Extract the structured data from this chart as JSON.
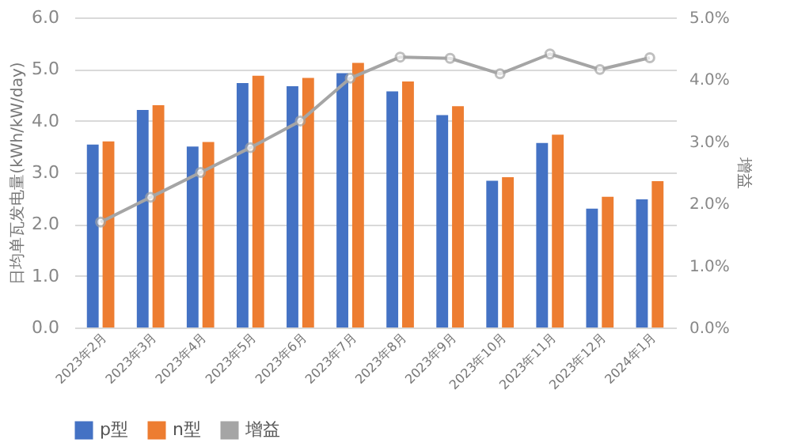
{
  "chart_data": {
    "type": "bar",
    "categories": [
      "2023年2月",
      "2023年3月",
      "2023年4月",
      "2023年5月",
      "2023年6月",
      "2023年7月",
      "2023年8月",
      "2023年9月",
      "2023年10月",
      "2023年11月",
      "2023年12月",
      "2024年1月"
    ],
    "ylabel": "日均单瓦发电量(kWh/kW/day)",
    "y2label": "增益",
    "series": [
      {
        "name": "p型",
        "color": "#4472c4",
        "values": [
          3.54,
          4.21,
          3.5,
          4.73,
          4.67,
          4.92,
          4.57,
          4.11,
          2.84,
          3.57,
          2.3,
          2.48
        ]
      },
      {
        "name": "n型",
        "color": "#ed7d31",
        "values": [
          3.6,
          4.3,
          3.59,
          4.87,
          4.83,
          5.12,
          4.76,
          4.28,
          2.91,
          3.73,
          2.53,
          2.83
        ]
      },
      {
        "name": "增益",
        "color": "#a5a5a5",
        "type": "line",
        "axis": "y2",
        "marker": "circle",
        "values": [
          1.7,
          2.1,
          2.5,
          2.9,
          3.33,
          4.02,
          4.36,
          4.34,
          4.09,
          4.41,
          4.16,
          4.35
        ]
      }
    ],
    "ylim": [
      0,
      6
    ],
    "yticks": [
      {
        "value": 0,
        "label": "0.0"
      },
      {
        "value": 1,
        "label": "1.0"
      },
      {
        "value": 2,
        "label": "2.0"
      },
      {
        "value": 3,
        "label": "3.0"
      },
      {
        "value": 4,
        "label": "4.0"
      },
      {
        "value": 5,
        "label": "5.0"
      },
      {
        "value": 6,
        "label": "6.0"
      }
    ],
    "y2lim": [
      0,
      5
    ],
    "y2ticks": [
      {
        "value": 0,
        "label": "0.0%"
      },
      {
        "value": 1,
        "label": "1.0%"
      },
      {
        "value": 2,
        "label": "2.0%"
      },
      {
        "value": 3,
        "label": "3.0%"
      },
      {
        "value": 4,
        "label": "4.0%"
      },
      {
        "value": 5,
        "label": "5.0%"
      }
    ],
    "grid": "y",
    "legend": "bottom"
  }
}
